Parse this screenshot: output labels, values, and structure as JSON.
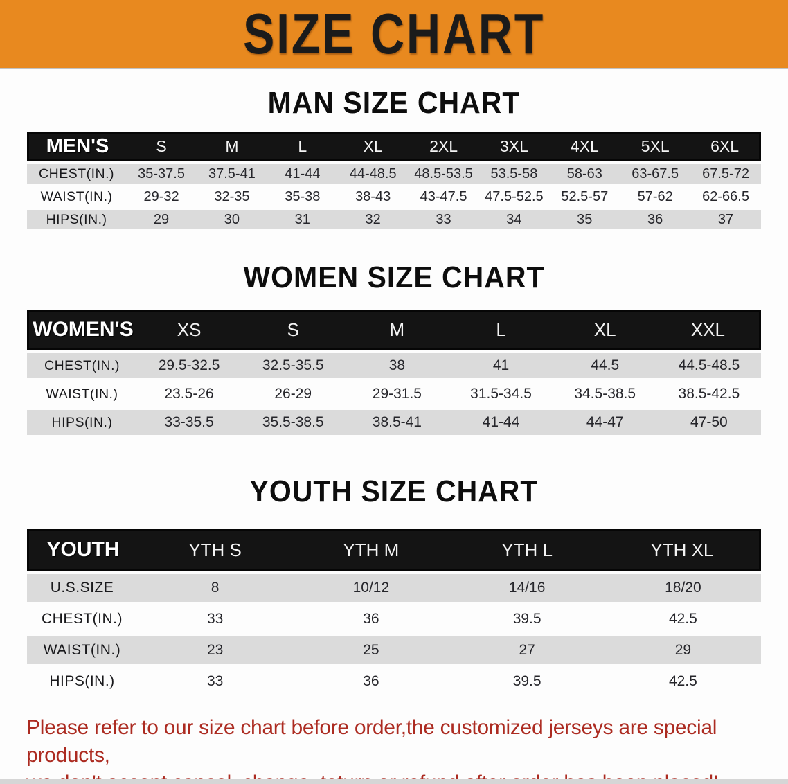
{
  "banner": {
    "title": "SIZE CHART",
    "background_color": "#E8891F",
    "text_color": "#1b1b1b"
  },
  "colors": {
    "table_header_bg": "#141414",
    "table_header_text": "#ffffff",
    "row_stripe_gray": "#dbdbdb",
    "row_stripe_white": "#fdfdfd",
    "disclaimer_red": "#AC2B21"
  },
  "sections": [
    {
      "heading": "MAN SIZE CHART",
      "table": {
        "header": [
          "MEN'S",
          "S",
          "M",
          "L",
          "XL",
          "2XL",
          "3XL",
          "4XL",
          "5XL",
          "6XL"
        ],
        "rows": [
          [
            "CHEST(IN.)",
            "35-37.5",
            "37.5-41",
            "41-44",
            "44-48.5",
            "48.5-53.5",
            "53.5-58",
            "58-63",
            "63-67.5",
            "67.5-72"
          ],
          [
            "WAIST(IN.)",
            "29-32",
            "32-35",
            "35-38",
            "38-43",
            "43-47.5",
            "47.5-52.5",
            "52.5-57",
            "57-62",
            "62-66.5"
          ],
          [
            "HIPS(IN.)",
            "29",
            "30",
            "31",
            "32",
            "33",
            "34",
            "35",
            "36",
            "37"
          ]
        ]
      }
    },
    {
      "heading": "WOMEN SIZE CHART",
      "table": {
        "header": [
          "WOMEN'S",
          "XS",
          "S",
          "M",
          "L",
          "XL",
          "XXL"
        ],
        "rows": [
          [
            "CHEST(IN.)",
            "29.5-32.5",
            "32.5-35.5",
            "38",
            "41",
            "44.5",
            "44.5-48.5"
          ],
          [
            "WAIST(IN.)",
            "23.5-26",
            "26-29",
            "29-31.5",
            "31.5-34.5",
            "34.5-38.5",
            "38.5-42.5"
          ],
          [
            "HIPS(IN.)",
            "33-35.5",
            "35.5-38.5",
            "38.5-41",
            "41-44",
            "44-47",
            "47-50"
          ]
        ]
      }
    },
    {
      "heading": "YOUTH SIZE CHART",
      "table": {
        "header": [
          "YOUTH",
          "YTH S",
          "YTH M",
          "YTH L",
          "YTH XL"
        ],
        "rows": [
          [
            "U.S.SIZE",
            "8",
            "10/12",
            "14/16",
            "18/20"
          ],
          [
            "CHEST(IN.)",
            "33",
            "36",
            "39.5",
            "42.5"
          ],
          [
            "WAIST(IN.)",
            "23",
            "25",
            "27",
            "29"
          ],
          [
            "HIPS(IN.)",
            "33",
            "36",
            "39.5",
            "42.5"
          ]
        ]
      }
    }
  ],
  "disclaimer": {
    "line1": "Please refer to our size chart before order,the customized jerseys are special products,",
    "line2": "we don't accept cancel, change, teturn or refund after order has been placed!"
  }
}
